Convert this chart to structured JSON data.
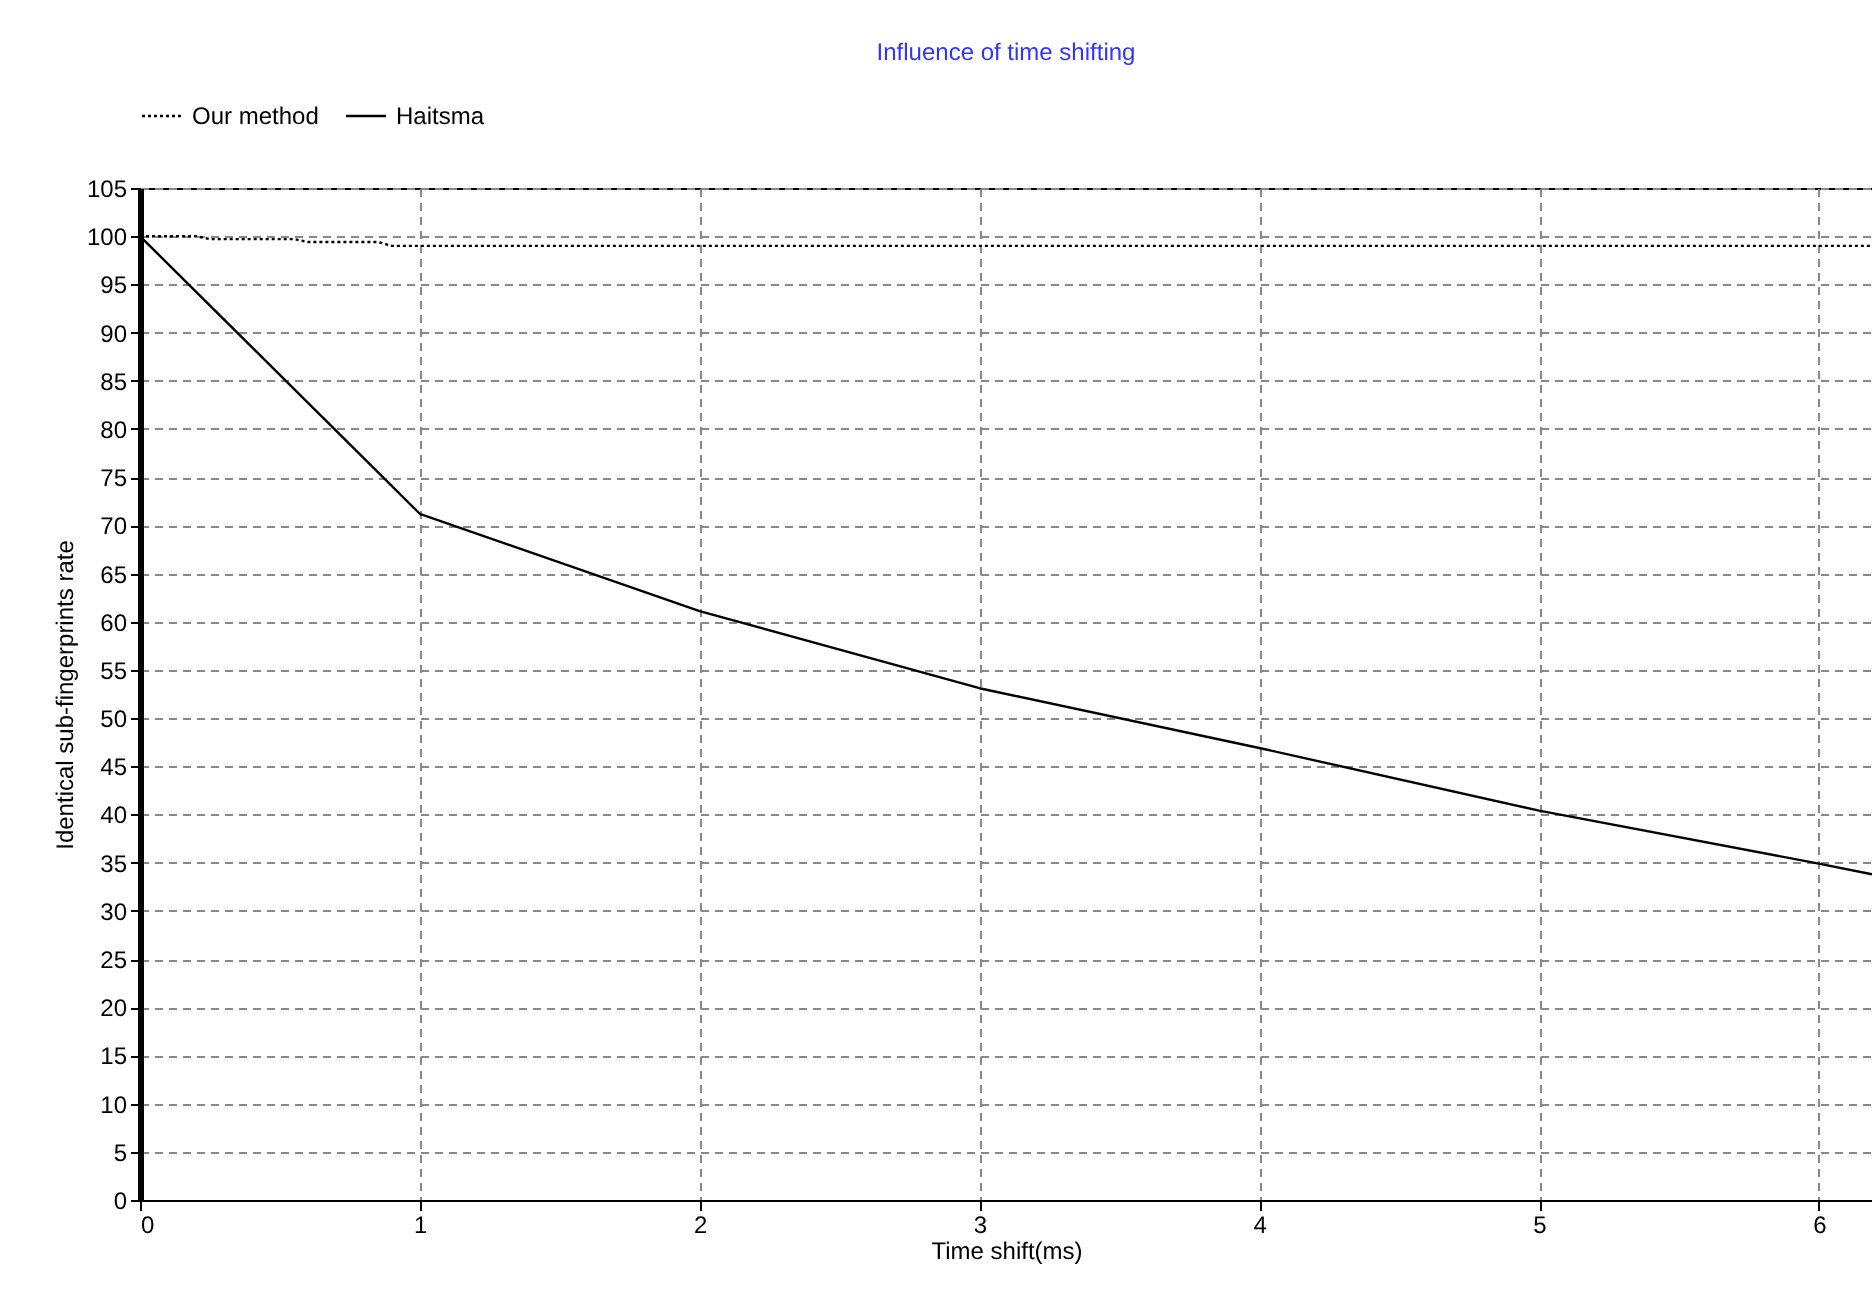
{
  "chart_data": {
    "type": "line",
    "title": "Influence of time shifting",
    "xlabel": "Time shift(ms)",
    "ylabel": "Identical sub-fingerprints rate",
    "xlim": [
      0,
      6.19
    ],
    "xticks": [
      0,
      1,
      2,
      3,
      4,
      5,
      6
    ],
    "ylim": [
      0,
      105
    ],
    "yticks": [
      0,
      5,
      10,
      15,
      20,
      25,
      30,
      35,
      40,
      45,
      50,
      55,
      60,
      65,
      70,
      75,
      80,
      85,
      90,
      95,
      100,
      105
    ],
    "grid": true,
    "legend": "top",
    "marker": "none",
    "series": [
      {
        "name": "Our method",
        "color": "#000000",
        "line_style": "dotted",
        "x": [
          0,
          0.2,
          0.25,
          0.55,
          0.6,
          0.85,
          0.9,
          6.19
        ],
        "values": [
          100,
          100,
          99.7,
          99.7,
          99.4,
          99.4,
          99,
          99
        ]
      },
      {
        "name": "Haitsma",
        "color": "#000000",
        "line_style": "solid",
        "x": [
          0,
          1,
          2,
          3,
          4,
          5,
          6,
          6.19
        ],
        "values": [
          100,
          71.2,
          61.1,
          53.1,
          46.9,
          40.4,
          34.9,
          33.8
        ]
      }
    ]
  }
}
